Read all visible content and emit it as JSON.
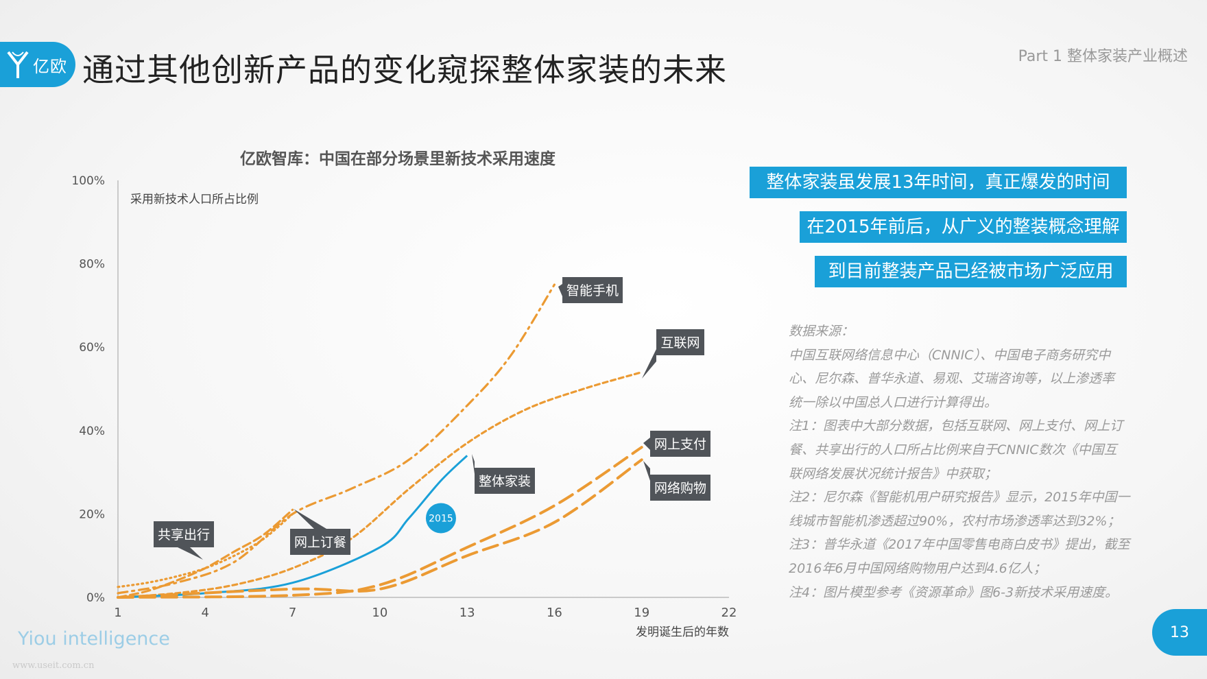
{
  "header": {
    "logo_text": "亿欧",
    "title": "通过其他创新产品的变化窥探整体家装的未来",
    "part_label": "Part 1 整体家装产业概述"
  },
  "colors": {
    "accent": "#1aa0d8",
    "orange": "#eb9a33",
    "label_bg": "#505459"
  },
  "chart_data": {
    "type": "line",
    "title": "亿欧智库：中国在部分场景里新技术采用速度",
    "ylabel": "采用新技术人口所占比例",
    "xlabel": "发明诞生后的年数",
    "xlim": [
      1,
      22
    ],
    "ylim": [
      0,
      100
    ],
    "x_ticks": [
      "1",
      "4",
      "7",
      "10",
      "13",
      "16",
      "19",
      "22"
    ],
    "y_ticks": [
      "0%",
      "20%",
      "40%",
      "60%",
      "80%",
      "100%"
    ],
    "series": [
      {
        "name": "智能手机",
        "style": "dashdot",
        "color": "#eb9a33",
        "x": [
          1,
          3,
          5,
          7,
          9,
          11,
          13,
          14.5,
          16
        ],
        "y": [
          1,
          3.5,
          8.5,
          20,
          26,
          33,
          46,
          58,
          75
        ]
      },
      {
        "name": "互联网",
        "style": "dashed-fine",
        "color": "#eb9a33",
        "x": [
          1,
          3,
          5,
          7,
          9,
          11,
          13,
          15,
          17,
          19
        ],
        "y": [
          0,
          1,
          3,
          7,
          14,
          26,
          37,
          45,
          50,
          54
        ]
      },
      {
        "name": "整体家装",
        "style": "solid",
        "color": "#1aa0d8",
        "x": [
          1,
          4,
          7,
          10,
          11,
          12.1,
          13
        ],
        "y": [
          0,
          1,
          3.5,
          12,
          19,
          28,
          34
        ]
      },
      {
        "name": "网上支付",
        "style": "dashed-long",
        "color": "#eb9a33",
        "x": [
          1,
          7,
          10,
          13,
          16,
          19
        ],
        "y": [
          0,
          0.5,
          3,
          12,
          22,
          36
        ]
      },
      {
        "name": "网络购物",
        "style": "dashed-long",
        "color": "#eb9a33",
        "x": [
          1,
          7,
          10,
          13,
          16,
          19
        ],
        "y": [
          0,
          2,
          2,
          10,
          18,
          33
        ]
      },
      {
        "name": "共享出行",
        "style": "dotted",
        "color": "#eb9a33",
        "x": [
          1,
          2,
          3,
          4,
          5,
          6,
          7
        ],
        "y": [
          2.5,
          3.5,
          5,
          7,
          10,
          14,
          20
        ]
      },
      {
        "name": "网上订餐",
        "style": "dashed-medium",
        "color": "#eb9a33",
        "x": [
          1,
          2,
          3,
          4,
          5,
          6,
          7
        ],
        "y": [
          0,
          1.5,
          4,
          7,
          11,
          15,
          21
        ]
      }
    ],
    "annotations": [
      {
        "text": "2015",
        "x": 12.1,
        "y": 19
      }
    ]
  },
  "callouts": [
    "整体家装虽发展13年时间，真正爆发的时间",
    "在2015年前后，从广义的整装概念理解",
    "到目前整装产品已经被市场广泛应用"
  ],
  "source": {
    "lines": [
      "数据来源：",
      "中国互联网络信息中心（CNNIC）、中国电子商务研究中",
      "心、尼尔森、普华永道、易观、艾瑞咨询等，以上渗透率",
      "统一除以中国总人口进行计算得出。",
      "注1：图表中大部分数据，包括互联网、网上支付、网上订",
      "餐、共享出行的人口所占比例来自于CNNIC数次《中国互",
      "联网络发展状况统计报告》中获取；",
      "注2：尼尔森《智能机用户研究报告》显示，2015年中国一",
      "线城市智能机渗透超过90%，农村市场渗透率达到32%；",
      "注3：普华永道《2017年中国零售电商白皮书》提出，截至",
      "2016年6月中国网络购物用户达到4.6亿人；",
      "注4：图片模型参考《资源革命》图6-3新技术采用速度。"
    ]
  },
  "footer": {
    "brand": "Yiou intelligence",
    "watermark": "www.useit.com.cn",
    "page_number": "13"
  }
}
